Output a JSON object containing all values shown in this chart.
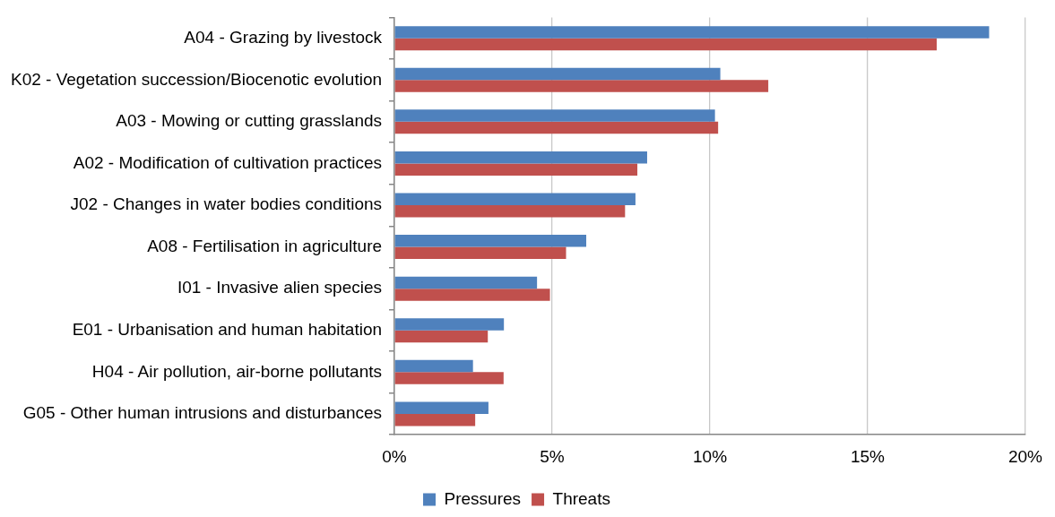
{
  "chart_data": {
    "type": "bar",
    "orientation": "horizontal",
    "categories": [
      "A04 - Grazing by livestock",
      "K02 - Vegetation succession/Biocenotic evolution",
      "A03 - Mowing or cutting grasslands",
      "A02 - Modification of cultivation practices",
      "J02 - Changes in water bodies conditions",
      "A08 - Fertilisation in agriculture",
      "I01 - Invasive alien species",
      "E01 - Urbanisation and human habitation",
      "H04 - Air pollution, air-borne pollutants",
      "G05 - Other human intrusions and disturbances"
    ],
    "series": [
      {
        "name": "Pressures",
        "color": "#4f81bd",
        "values": [
          18.85,
          10.33,
          10.16,
          8.01,
          7.64,
          6.08,
          4.52,
          3.47,
          2.49,
          2.98
        ]
      },
      {
        "name": "Threats",
        "color": "#c0504d",
        "values": [
          17.19,
          11.85,
          10.26,
          7.7,
          7.31,
          5.44,
          4.93,
          2.96,
          3.46,
          2.56
        ]
      }
    ],
    "xlim": [
      0,
      20
    ],
    "xticks": [
      {
        "value": 0,
        "label": "0%"
      },
      {
        "value": 5,
        "label": "5%"
      },
      {
        "value": 10,
        "label": "10%"
      },
      {
        "value": 15,
        "label": "15%"
      },
      {
        "value": 20,
        "label": "20%"
      }
    ],
    "grid": "x",
    "legend": "bottom"
  }
}
